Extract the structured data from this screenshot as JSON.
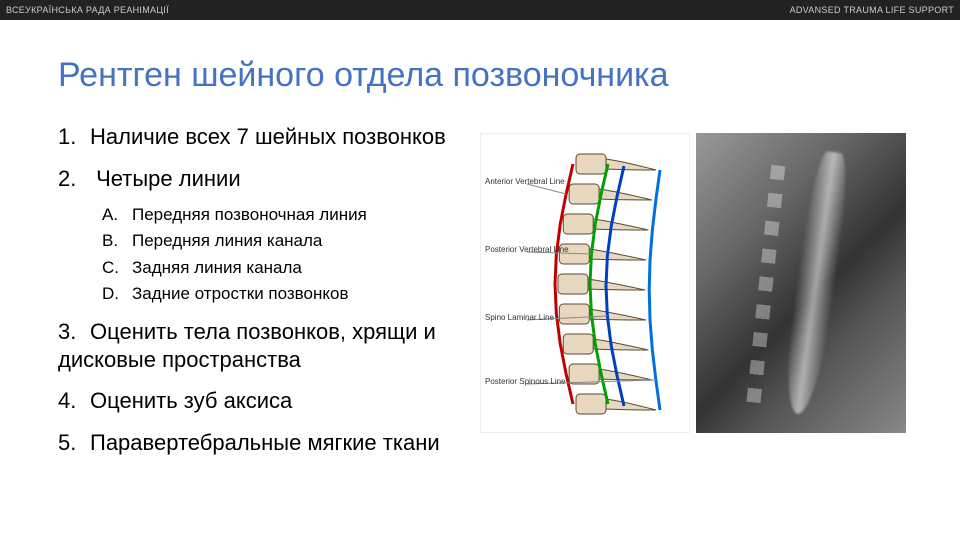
{
  "header": {
    "left": "ВСЕУКРАЇНСЬКА РАДА РЕАНІМАЦІЇ",
    "right": "ADVANSED TRAUMA LIFE SUPPORT"
  },
  "title": "Рентген шейного отдела позвоночника",
  "list": {
    "i1": "Наличие всех 7 шейных позвонков",
    "i2": "Четыре линии",
    "sub": {
      "a": "Передняя позвоночная линия",
      "b": "Передняя линия канала",
      "c": "Задняя линия канала",
      "d": "Задние отростки позвонков"
    },
    "i3": "Оценить тела позвонков, хрящи и дисковые пространства",
    "i4": "Оценить зуб аксиса",
    "i5": "Паравертебральные мягкие ткани"
  },
  "diagram": {
    "labels": {
      "l1": "Anterior\nVertebral\nLine",
      "l2": "Posterior\nVertebral\nLine",
      "l3": "Spino\nLaminar\nLine",
      "l4": "Posterior\nSpinous\nLine"
    },
    "line_colors": {
      "anterior": "#c00000",
      "posterior": "#00a000",
      "spinolaminar": "#0040c0",
      "spinous": "#0070e0"
    },
    "vertebra_fill": "#e8d8c0",
    "vertebra_stroke": "#5a4a30"
  }
}
